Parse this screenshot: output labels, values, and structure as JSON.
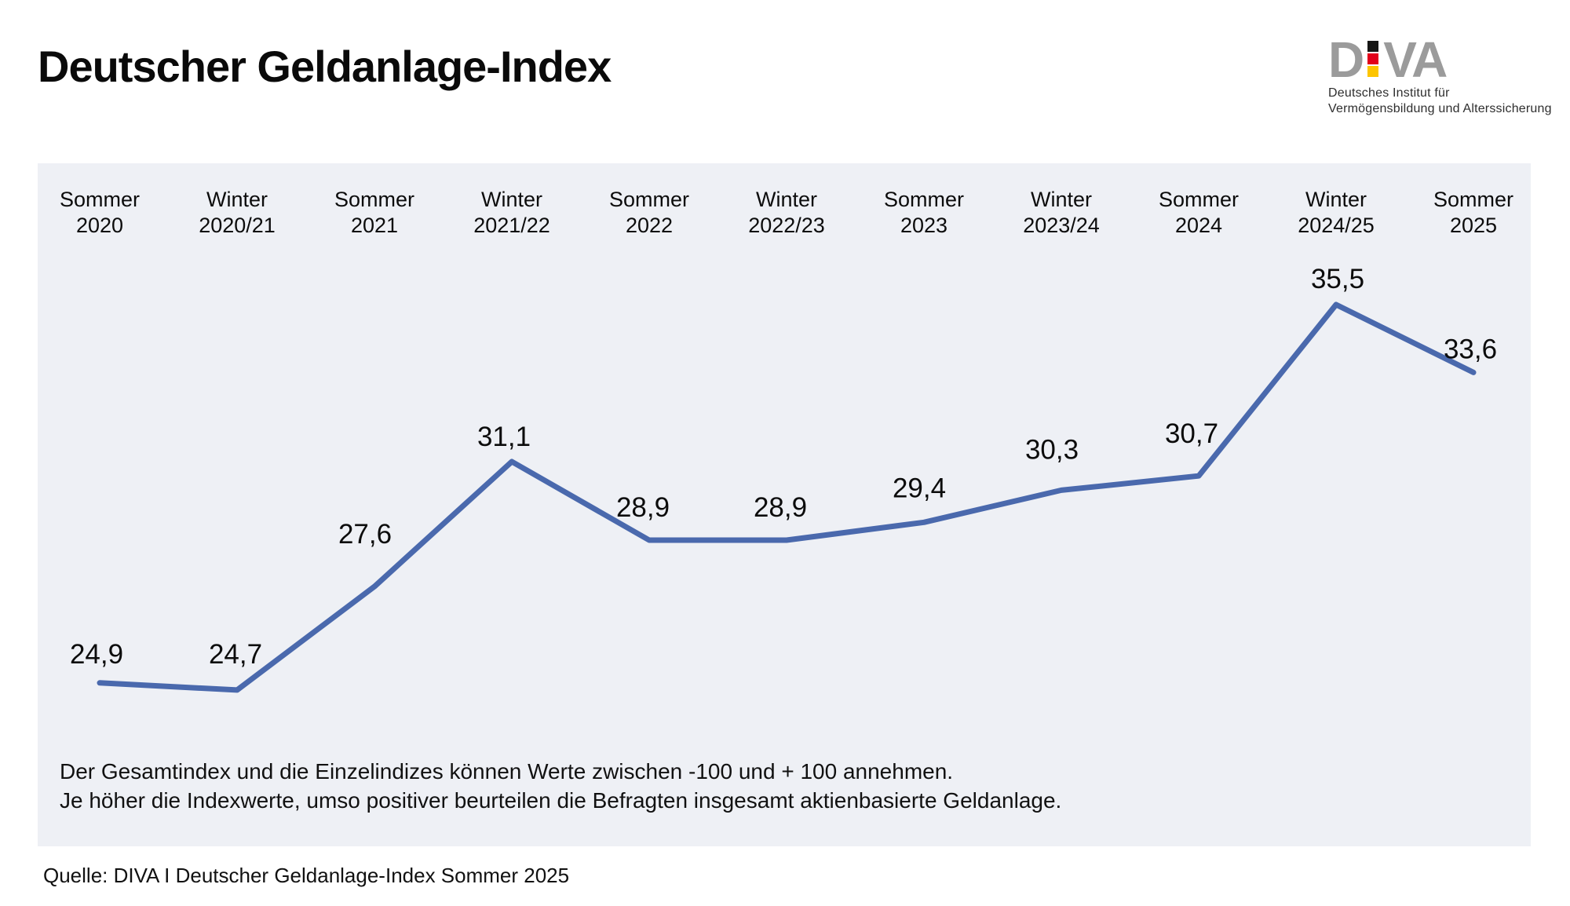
{
  "header": {
    "title": "Deutscher Geldanlage-Index"
  },
  "logo": {
    "letter_left": "D",
    "letter_right": "VA",
    "tagline_line1": "Deutsches Institut für",
    "tagline_line2": "Vermögensbildung und Alterssicherung",
    "colors": {
      "letters": "#9b9b9b",
      "square_black": "#161615",
      "square_red": "#e2001a",
      "square_gold": "#fdc500",
      "tagline": "#2e2e2e"
    }
  },
  "chart_data": {
    "type": "line",
    "title": "Deutscher Geldanlage-Index",
    "categories": [
      "Sommer\n2020",
      "Winter\n2020/21",
      "Sommer\n2021",
      "Winter\n2021/22",
      "Sommer\n2022",
      "Winter\n2022/23",
      "Sommer\n2023",
      "Winter\n2023/24",
      "Sommer\n2024",
      "Winter\n2024/25",
      "Sommer\n2025"
    ],
    "values": [
      24.9,
      24.7,
      27.6,
      31.1,
      28.9,
      28.9,
      29.4,
      30.3,
      30.7,
      35.5,
      33.6
    ],
    "value_labels": [
      "24,9",
      "24,7",
      "27,6",
      "31,1",
      "28,9",
      "28,9",
      "29,4",
      "30,3",
      "30,7",
      "35,5",
      "33,6"
    ],
    "series_color": "#4a69ad",
    "background": "#eef0f5",
    "value_domain": [
      -100,
      100
    ],
    "ylim": [
      23,
      38
    ],
    "grid": false,
    "legend": false,
    "xlabel": "",
    "ylabel": ""
  },
  "footnote": {
    "line1": "Der Gesamtindex und die Einzelindizes können Werte zwischen -100 und + 100 annehmen.",
    "line2": "Je höher die Indexwerte, umso positiver beurteilen die Befragten insgesamt aktienbasierte Geldanlage."
  },
  "source": {
    "text": "Quelle: DIVA I Deutscher Geldanlage-Index Sommer 2025"
  }
}
